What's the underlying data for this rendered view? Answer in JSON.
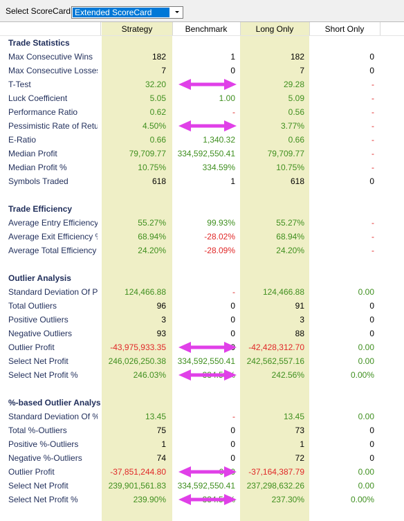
{
  "toolbar": {
    "label": "Select ScoreCard:",
    "selected": "Extended ScoreCard"
  },
  "table": {
    "columns": [
      "Strategy",
      "Benchmark",
      "Long Only",
      "Short Only"
    ],
    "sections": [
      {
        "title": "Trade Statistics",
        "rows": [
          {
            "label": "Max Consecutive Wins",
            "cells": [
              "182",
              "1",
              "182",
              "0"
            ]
          },
          {
            "label": "Max Consecutive Losses",
            "cells": [
              "7",
              "0",
              "7",
              "0"
            ]
          },
          {
            "label": "T-Test",
            "cells": [
              "32.20",
              null,
              "29.28",
              "-"
            ]
          },
          {
            "label": "Luck Coefficient",
            "cells": [
              "5.05",
              "1.00",
              "5.09",
              "-"
            ]
          },
          {
            "label": "Performance Ratio",
            "cells": [
              "0.62",
              "-",
              "0.56",
              "-"
            ]
          },
          {
            "label": "Pessimistic Rate of Retur",
            "cells": [
              "4.50%",
              null,
              "3.77%",
              "-"
            ]
          },
          {
            "label": "E-Ratio",
            "cells": [
              "0.66",
              "1,340.32",
              "0.66",
              "-"
            ]
          },
          {
            "label": "Median Profit",
            "cells": [
              "79,709.77",
              "334,592,550.41",
              "79,709.77",
              "-"
            ]
          },
          {
            "label": "Median Profit %",
            "cells": [
              "10.75%",
              "334.59%",
              "10.75%",
              "-"
            ]
          },
          {
            "label": "Symbols Traded",
            "cells": [
              "618",
              "1",
              "618",
              "0"
            ]
          }
        ]
      },
      {
        "title": "Trade Efficiency",
        "rows": [
          {
            "label": "Average Entry Efficiency",
            "cells": [
              "55.27%",
              "99.93%",
              "55.27%",
              "-"
            ]
          },
          {
            "label": "Average Exit Efficiency %",
            "cells": [
              "68.94%",
              "-28.02%",
              "68.94%",
              "-"
            ]
          },
          {
            "label": "Average Total Efficiency",
            "cells": [
              "24.20%",
              "-28.09%",
              "24.20%",
              "-"
            ]
          }
        ]
      },
      {
        "title": "Outlier Analysis",
        "rows": [
          {
            "label": "Standard Deviation Of Pi",
            "cells": [
              "124,466.88",
              "-",
              "124,466.88",
              "0.00"
            ]
          },
          {
            "label": "Total Outliers",
            "cells": [
              "96",
              "0",
              "91",
              "0"
            ]
          },
          {
            "label": "Positive Outliers",
            "cells": [
              "3",
              "0",
              "3",
              "0"
            ]
          },
          {
            "label": "Negative Outliers",
            "cells": [
              "93",
              "0",
              "88",
              "0"
            ]
          },
          {
            "label": "Outlier Profit",
            "cells": [
              "-43,975,933.35",
              "0",
              "-42,428,312.70",
              "0.00"
            ]
          },
          {
            "label": "Select Net Profit",
            "cells": [
              "246,026,250.38",
              "334,592,550.41",
              "242,562,557.16",
              "0.00"
            ]
          },
          {
            "label": "Select Net Profit %",
            "cells": [
              "246.03%",
              "334.59%",
              "242.56%",
              "0.00%"
            ]
          }
        ]
      },
      {
        "title": "%-based Outlier Analys",
        "rows": [
          {
            "label": "Standard Deviation Of %",
            "cells": [
              "13.45",
              "-",
              "13.45",
              "0.00"
            ]
          },
          {
            "label": "Total %-Outliers",
            "cells": [
              "75",
              "0",
              "73",
              "0"
            ]
          },
          {
            "label": "Positive %-Outliers",
            "cells": [
              "1",
              "0",
              "1",
              "0"
            ]
          },
          {
            "label": "Negative %-Outliers",
            "cells": [
              "74",
              "0",
              "72",
              "0"
            ]
          },
          {
            "label": "Outlier Profit",
            "cells": [
              "-37,851,244.80",
              "0.00",
              "-37,164,387.79",
              "0.00"
            ]
          },
          {
            "label": "Select Net Profit",
            "cells": [
              "239,901,561.83",
              "334,592,550.41",
              "237,298,632.26",
              "0.00"
            ]
          },
          {
            "label": "Select Net Profit %",
            "cells": [
              "239.90%",
              "334.59%",
              "237.30%",
              "0.00%"
            ]
          }
        ]
      }
    ]
  }
}
